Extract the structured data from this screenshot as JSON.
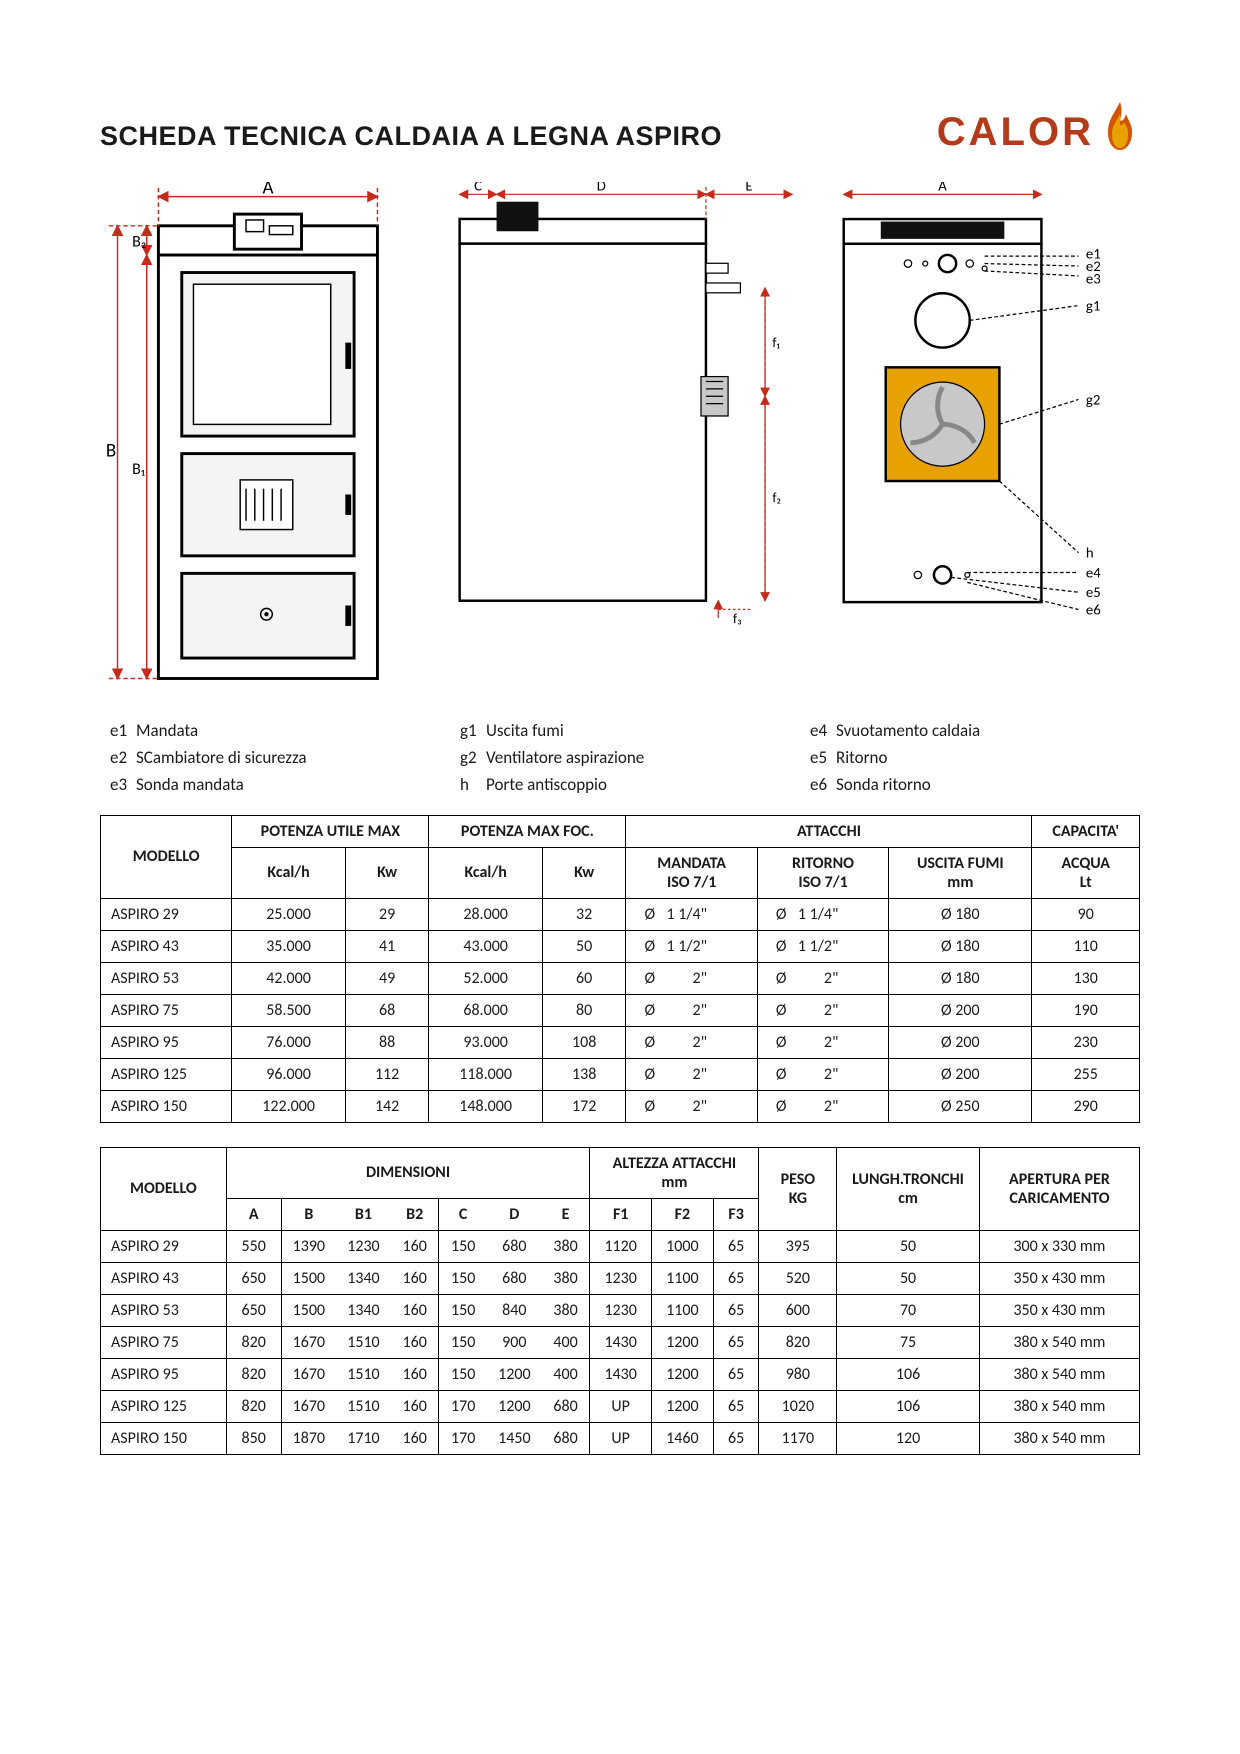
{
  "title": "SCHEDA TECNICA CALDAIA A LEGNA ASPIRO",
  "brand": "CALOR",
  "legend": {
    "e1": "Mandata",
    "e2": "SCambiatore di sicurezza",
    "e3": "Sonda mandata",
    "g1": "Uscita fumi",
    "g2": "Ventilatore aspirazione",
    "h": "Porte antiscoppio",
    "e4": "Svuotamento caldaia",
    "e5": "Ritorno",
    "e6": "Sonda ritorno"
  },
  "dim_labels": {
    "A": "A",
    "B": "B",
    "B1": "B₁",
    "B2": "B₂",
    "C": "C",
    "D": "D",
    "E": "E",
    "f1": "f₁",
    "f2": "f₂",
    "f3": "f₃",
    "e1": "e1",
    "e2": "e2",
    "e3": "e3",
    "e4": "e4",
    "e5": "e5",
    "e6": "e6",
    "g1": "g1",
    "g2": "g2",
    "h": "h"
  },
  "t1": {
    "col_model": "MODELLO",
    "grp_putile": "POTENZA UTILE MAX",
    "grp_pfoc": "POTENZA MAX FOC.",
    "grp_att": "ATTACCHI",
    "grp_cap": "CAPACITA'",
    "sub_kcal": "Kcal/h",
    "sub_kw": "Kw",
    "sub_mandata_l1": "MANDATA",
    "sub_mandata_l2": "ISO 7/1",
    "sub_ritorno_l1": "RITORNO",
    "sub_ritorno_l2": "ISO 7/1",
    "sub_fumi_l1": "USCITA FUMI",
    "sub_fumi_l2": "mm",
    "sub_acqua_l1": "ACQUA",
    "sub_acqua_l2": "Lt",
    "rows": [
      {
        "m": "ASPIRO 29",
        "pu_kcal": "25.000",
        "pu_kw": "29",
        "pf_kcal": "28.000",
        "pf_kw": "32",
        "mand": "1  1/4\"",
        "rit": "1  1/4\"",
        "fumi": "Ø 180",
        "acqua": "90"
      },
      {
        "m": "ASPIRO 43",
        "pu_kcal": "35.000",
        "pu_kw": "41",
        "pf_kcal": "43.000",
        "pf_kw": "50",
        "mand": "1  1/2\"",
        "rit": "1  1/2\"",
        "fumi": "Ø 180",
        "acqua": "110"
      },
      {
        "m": "ASPIRO 53",
        "pu_kcal": "42.000",
        "pu_kw": "49",
        "pf_kcal": "52.000",
        "pf_kw": "60",
        "mand": "2\"",
        "rit": "2\"",
        "fumi": "Ø 180",
        "acqua": "130"
      },
      {
        "m": "ASPIRO 75",
        "pu_kcal": "58.500",
        "pu_kw": "68",
        "pf_kcal": "68.000",
        "pf_kw": "80",
        "mand": "2\"",
        "rit": "2\"",
        "fumi": "Ø 200",
        "acqua": "190"
      },
      {
        "m": "ASPIRO 95",
        "pu_kcal": "76.000",
        "pu_kw": "88",
        "pf_kcal": "93.000",
        "pf_kw": "108",
        "mand": "2\"",
        "rit": "2\"",
        "fumi": "Ø 200",
        "acqua": "230"
      },
      {
        "m": "ASPIRO 125",
        "pu_kcal": "96.000",
        "pu_kw": "112",
        "pf_kcal": "118.000",
        "pf_kw": "138",
        "mand": "2\"",
        "rit": "2\"",
        "fumi": "Ø 200",
        "acqua": "255"
      },
      {
        "m": "ASPIRO 150",
        "pu_kcal": "122.000",
        "pu_kw": "142",
        "pf_kcal": "148.000",
        "pf_kw": "172",
        "mand": "2\"",
        "rit": "2\"",
        "fumi": "Ø 250",
        "acqua": "290"
      }
    ]
  },
  "t2": {
    "col_model": "MODELLO",
    "grp_dim": "DIMENSIONI",
    "grp_alt_l1": "ALTEZZA ATTACCHI",
    "grp_alt_l2": "mm",
    "grp_peso_l1": "PESO",
    "grp_peso_l2": "KG",
    "grp_tron_l1": "LUNGH.TRONCHI",
    "grp_tron_l2": "cm",
    "grp_aper_l1": "APERTURA PER",
    "grp_aper_l2": "CARICAMENTO",
    "sub": {
      "A": "A",
      "B": "B",
      "B1": "B1",
      "B2": "B2",
      "C": "C",
      "D": "D",
      "E": "E",
      "F1": "F1",
      "F2": "F2",
      "F3": "F3"
    },
    "rows": [
      {
        "m": "ASPIRO 29",
        "A": "550",
        "B": "1390",
        "B1": "1230",
        "B2": "160",
        "C": "150",
        "D": "680",
        "E": "380",
        "F1": "1120",
        "F2": "1000",
        "F3": "65",
        "peso": "395",
        "tron": "50",
        "aper": "300 x 330 mm"
      },
      {
        "m": "ASPIRO 43",
        "A": "650",
        "B": "1500",
        "B1": "1340",
        "B2": "160",
        "C": "150",
        "D": "680",
        "E": "380",
        "F1": "1230",
        "F2": "1100",
        "F3": "65",
        "peso": "520",
        "tron": "50",
        "aper": "350 x 430 mm"
      },
      {
        "m": "ASPIRO 53",
        "A": "650",
        "B": "1500",
        "B1": "1340",
        "B2": "160",
        "C": "150",
        "D": "840",
        "E": "380",
        "F1": "1230",
        "F2": "1100",
        "F3": "65",
        "peso": "600",
        "tron": "70",
        "aper": "350 x 430 mm"
      },
      {
        "m": "ASPIRO 75",
        "A": "820",
        "B": "1670",
        "B1": "1510",
        "B2": "160",
        "C": "150",
        "D": "900",
        "E": "400",
        "F1": "1430",
        "F2": "1200",
        "F3": "65",
        "peso": "820",
        "tron": "75",
        "aper": "380 x 540 mm"
      },
      {
        "m": "ASPIRO 95",
        "A": "820",
        "B": "1670",
        "B1": "1510",
        "B2": "160",
        "C": "150",
        "D": "1200",
        "E": "400",
        "F1": "1430",
        "F2": "1200",
        "F3": "65",
        "peso": "980",
        "tron": "106",
        "aper": "380 x 540 mm"
      },
      {
        "m": "ASPIRO 125",
        "A": "820",
        "B": "1670",
        "B1": "1510",
        "B2": "160",
        "C": "170",
        "D": "1200",
        "E": "680",
        "F1": "UP",
        "F2": "1200",
        "F3": "65",
        "peso": "1020",
        "tron": "106",
        "aper": "380 x 540 mm"
      },
      {
        "m": "ASPIRO 150",
        "A": "850",
        "B": "1870",
        "B1": "1710",
        "B2": "160",
        "C": "170",
        "D": "1450",
        "E": "680",
        "F1": "UP",
        "F2": "1460",
        "F3": "65",
        "peso": "1170",
        "tron": "120",
        "aper": "380 x 540 mm"
      }
    ]
  },
  "colors": {
    "brand": "#b33a1a",
    "flame1": "#e8a200",
    "flame2": "#d25400",
    "dim": "#c62a1a",
    "panel": "#e8a200"
  }
}
